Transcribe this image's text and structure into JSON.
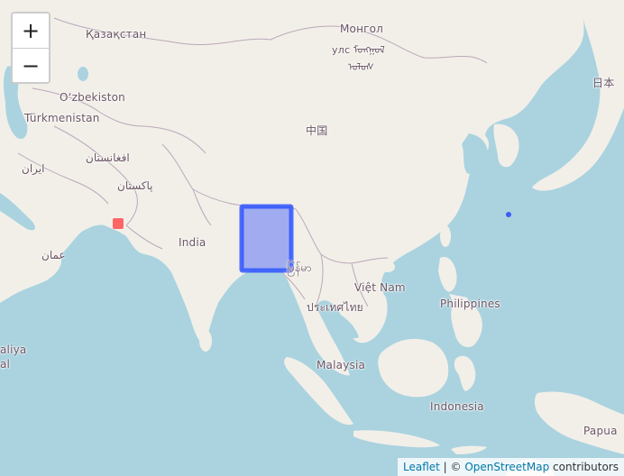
{
  "zoom": {
    "in_label": "+",
    "out_label": "−"
  },
  "labels": {
    "kazakhstan": "Қазақстан",
    "mongolia_1": "Монгол",
    "mongolia_2": "улс ᠮᠣᠩᠭᠣᠯ",
    "mongolia_3": "ᠤᠯᠤᠰ",
    "japan": "日本",
    "uzbekistan": "O‘zbekiston",
    "turkmenistan": "Türkmenistan",
    "china": "中国",
    "afghanistan": "افغانستان",
    "iran": "ایران",
    "pakistan": "پاکستان",
    "india": "India",
    "oman": "عمان",
    "myanmar": "မြန်မာ",
    "vietnam": "Việt Nam",
    "thailand": "ประเทศไทย",
    "philippines": "Philippines",
    "malaysia": "Malaysia",
    "indonesia": "Indonesia",
    "papua": "Papua",
    "edge_1": "aliya",
    "edge_2": "al"
  },
  "attribution": {
    "leaflet": "Leaflet",
    "separator": " | © ",
    "osm": "OpenStreetMap",
    "contributors": " contributors"
  },
  "colors": {
    "water": "#aad3df",
    "land": "#f2efe9",
    "border": "#b9a8b9",
    "rect_fill": "#3b5cf7",
    "rect_stroke": "#2f55ff",
    "square_marker": "#ff4d4d",
    "dot_marker": "#3b5cf7"
  }
}
